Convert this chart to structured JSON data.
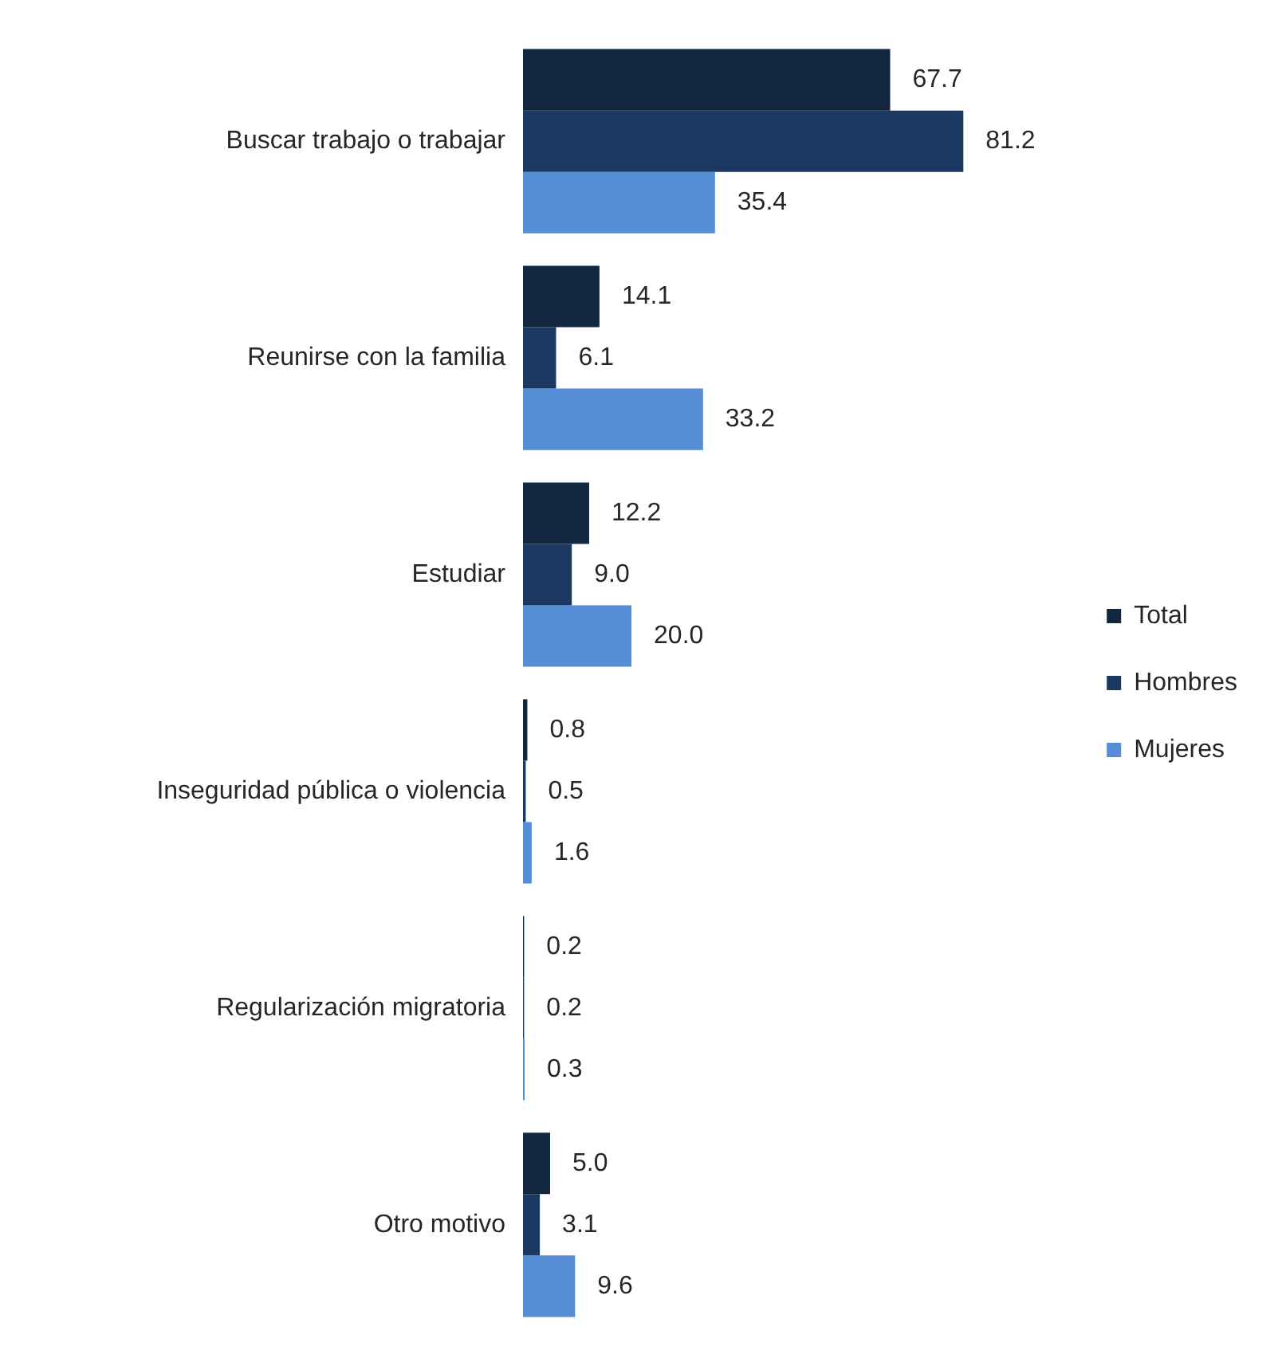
{
  "chart_data": {
    "type": "bar",
    "orientation": "horizontal",
    "legend": "right",
    "categories": [
      "Buscar trabajo o trabajar",
      "Reunirse con la familia",
      "Estudiar",
      "Inseguridad pública o violencia",
      "Regularización migratoria",
      "Otro motivo"
    ],
    "series": [
      {
        "name": "Total",
        "color": "#12263f",
        "values": [
          67.7,
          14.1,
          12.2,
          0.8,
          0.2,
          5.0
        ],
        "value_labels": [
          "67.7",
          "14.1",
          "12.2",
          "0.8",
          "0.2",
          "5.0"
        ]
      },
      {
        "name": "Hombres",
        "color": "#1b3961",
        "values": [
          81.2,
          6.1,
          9.0,
          0.5,
          0.2,
          3.1
        ],
        "value_labels": [
          "81.2",
          "6.1",
          "9.0",
          "0.5",
          "0.2",
          "3.1"
        ]
      },
      {
        "name": "Mujeres",
        "color": "#558ed5",
        "values": [
          35.4,
          33.2,
          20.0,
          1.6,
          0.3,
          9.6
        ],
        "value_labels": [
          "35.4",
          "33.2",
          "20.0",
          "1.6",
          "0.3",
          "9.6"
        ]
      }
    ]
  }
}
